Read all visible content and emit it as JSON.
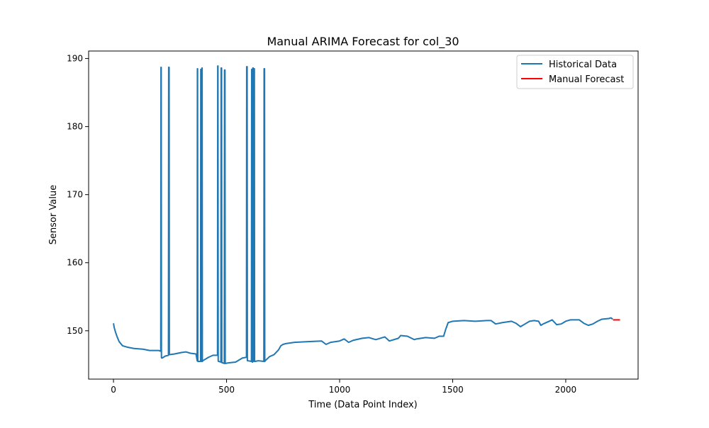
{
  "chart_data": {
    "type": "line",
    "title": "Manual ARIMA Forecast for col_30",
    "xlabel": "Time (Data Point Index)",
    "ylabel": "Sensor Value",
    "xlim": [
      -110,
      2320
    ],
    "ylim": [
      142.9,
      191.1
    ],
    "x_ticks": [
      0,
      500,
      1000,
      1500,
      2000
    ],
    "y_ticks": [
      150,
      160,
      170,
      180,
      190
    ],
    "x_tick_labels": [
      "0",
      "500",
      "1000",
      "1500",
      "2000"
    ],
    "y_tick_labels": [
      "150",
      "160",
      "170",
      "180",
      "190"
    ],
    "grid": false,
    "legend_position": "upper-right",
    "legend": [
      "Historical Data",
      "Manual Forecast"
    ],
    "series": [
      {
        "name": "Historical Data",
        "color": "#1f77b4",
        "x": [
          0,
          3,
          8,
          15,
          25,
          40,
          60,
          90,
          130,
          160,
          200,
          209,
          210,
          211,
          212,
          213,
          215,
          230,
          243,
          244,
          246,
          247,
          250,
          270,
          300,
          320,
          340,
          365,
          370,
          371,
          372,
          373,
          374,
          375,
          385,
          386,
          388,
          389,
          390,
          391,
          392,
          393,
          395,
          420,
          440,
          460,
          461,
          462,
          463,
          464,
          466,
          475,
          476,
          478,
          479,
          480,
          482,
          490,
          491,
          493,
          494,
          496,
          510,
          540,
          570,
          588,
          589,
          591,
          592,
          594,
          610,
          611,
          613,
          614,
          615,
          616,
          618,
          620,
          621,
          623,
          624,
          625,
          627,
          640,
          665,
          666,
          668,
          669,
          671,
          690,
          710,
          730,
          740,
          750,
          760,
          800,
          860,
          920,
          940,
          960,
          1000,
          1020,
          1040,
          1060,
          1100,
          1130,
          1160,
          1200,
          1220,
          1260,
          1270,
          1300,
          1330,
          1340,
          1380,
          1420,
          1440,
          1460,
          1470,
          1480,
          1490,
          1500,
          1550,
          1600,
          1650,
          1670,
          1690,
          1720,
          1760,
          1780,
          1800,
          1820,
          1840,
          1860,
          1880,
          1890,
          1900,
          1920,
          1940,
          1960,
          1980,
          2000,
          2020,
          2060,
          2080,
          2100,
          2120,
          2140,
          2160,
          2190,
          2200,
          2208
        ],
        "y": [
          151.1,
          150.5,
          149.9,
          149.2,
          148.4,
          147.8,
          147.6,
          147.4,
          147.3,
          147.1,
          147.1,
          147.0,
          188.7,
          188.7,
          146.1,
          146.0,
          146.0,
          146.3,
          146.4,
          188.7,
          188.7,
          146.5,
          146.5,
          146.6,
          146.8,
          146.9,
          146.7,
          146.6,
          145.6,
          188.5,
          188.5,
          145.5,
          145.5,
          145.5,
          145.5,
          188.4,
          188.4,
          145.5,
          145.5,
          188.6,
          188.6,
          145.5,
          145.6,
          146.1,
          146.4,
          146.4,
          188.9,
          188.9,
          145.6,
          145.5,
          145.5,
          145.4,
          188.6,
          188.6,
          145.4,
          145.3,
          145.3,
          145.2,
          188.3,
          188.3,
          145.2,
          145.2,
          145.3,
          145.4,
          146.0,
          146.1,
          188.8,
          188.8,
          145.6,
          145.6,
          145.5,
          188.4,
          188.4,
          145.4,
          145.4,
          188.6,
          188.6,
          145.5,
          188.5,
          188.5,
          145.5,
          145.5,
          145.5,
          145.6,
          145.5,
          188.5,
          188.5,
          145.5,
          145.6,
          146.2,
          146.5,
          147.2,
          147.8,
          148.0,
          148.1,
          148.3,
          148.4,
          148.5,
          148.0,
          148.3,
          148.5,
          148.8,
          148.3,
          148.6,
          148.9,
          149.0,
          148.7,
          149.1,
          148.5,
          148.9,
          149.3,
          149.2,
          148.7,
          148.8,
          149.0,
          148.9,
          149.2,
          149.2,
          150.3,
          151.2,
          151.3,
          151.4,
          151.5,
          151.4,
          151.5,
          151.5,
          151.0,
          151.2,
          151.4,
          151.1,
          150.6,
          151.0,
          151.4,
          151.5,
          151.4,
          150.8,
          151.0,
          151.3,
          151.6,
          150.9,
          151.0,
          151.4,
          151.6,
          151.6,
          151.1,
          150.8,
          151.0,
          151.4,
          151.7,
          151.8,
          151.9,
          151.7
        ]
      },
      {
        "name": "Manual Forecast",
        "color": "#ff0000",
        "x": [
          2209,
          2240
        ],
        "y": [
          151.6,
          151.6
        ]
      }
    ]
  }
}
